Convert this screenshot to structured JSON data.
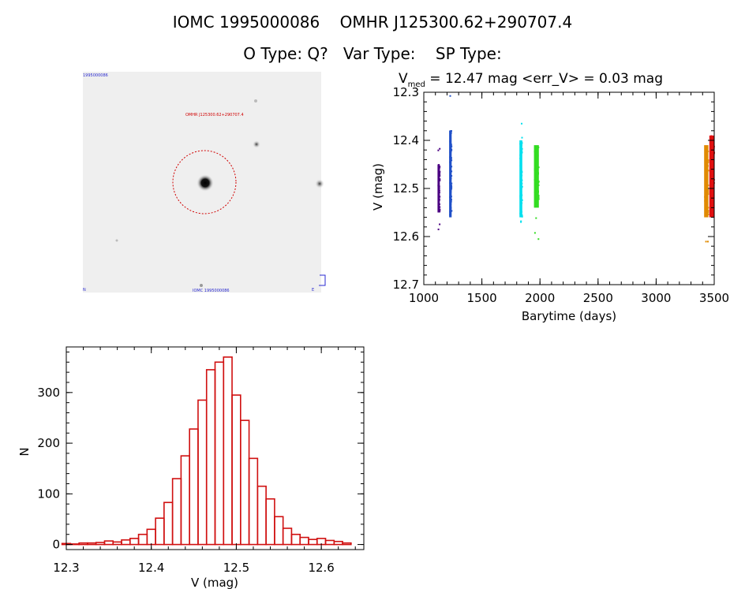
{
  "header": {
    "line1": "IOMC 1995000086    OMHR J125300.62+290707.4",
    "line2": "O Type: Q?   Var Type:    SP Type:"
  },
  "colors": {
    "lc_series": [
      "#4b0082",
      "#1f4fc8",
      "#00e0ee",
      "#33dd22",
      "#e08a00",
      "#e01010"
    ],
    "histogram": "#d01010",
    "marker_circle": "#d00000"
  },
  "finder_image": {
    "corner_tl": "1995000086",
    "corner_bl": "N",
    "corner_br": "E",
    "caption_bottom": "IOMC 1995000086",
    "target_label": "OMHR J125300.62+290707.4"
  },
  "chart_data": [
    {
      "type": "scatter",
      "title_prefix": "V",
      "title_subscript": "med",
      "title_suffix": " = 12.47 mag <err_V> = 0.03 mag",
      "xlabel": "Barytime (days)",
      "ylabel": "V (mag)",
      "xlim": [
        1000,
        3500
      ],
      "ylim": [
        12.3,
        12.7
      ],
      "y_inverted": true,
      "xticks": [
        1000,
        1500,
        2000,
        2500,
        3000,
        3500
      ],
      "yticks": [
        12.3,
        12.4,
        12.5,
        12.6,
        12.7
      ],
      "series": [
        {
          "name": "season1",
          "x_range": [
            1125,
            1138
          ],
          "y_min": 12.41,
          "y_max": 12.62,
          "y_core": [
            12.45,
            12.55
          ],
          "color_index": 0
        },
        {
          "name": "season2",
          "x_range": [
            1225,
            1240
          ],
          "y_min": 12.3,
          "y_max": 12.6,
          "y_core": [
            12.38,
            12.56
          ],
          "color_index": 1
        },
        {
          "name": "season3",
          "x_range": [
            1830,
            1848
          ],
          "y_min": 12.34,
          "y_max": 12.61,
          "y_core": [
            12.4,
            12.56
          ],
          "color_index": 2
        },
        {
          "name": "season4",
          "x_range": [
            1955,
            1990
          ],
          "y_min": 12.36,
          "y_max": 12.64,
          "y_core": [
            12.41,
            12.54
          ],
          "color_index": 3
        },
        {
          "name": "season5",
          "x_range": [
            3420,
            3450
          ],
          "y_min": 12.39,
          "y_max": 12.62,
          "y_core": [
            12.41,
            12.56
          ],
          "color_index": 4
        },
        {
          "name": "season6",
          "x_range": [
            3465,
            3500
          ],
          "y_min": 12.36,
          "y_max": 12.58,
          "y_core": [
            12.39,
            12.56
          ],
          "color_index": 5
        }
      ]
    },
    {
      "type": "bar",
      "style": "histogram",
      "xlabel": "V (mag)",
      "ylabel": "N",
      "xlim": [
        12.3,
        12.65
      ],
      "ylim": [
        -10,
        390
      ],
      "xticks": [
        12.3,
        12.4,
        12.5,
        12.6
      ],
      "yticks": [
        0,
        100,
        200,
        300
      ],
      "bin_width": 0.01,
      "bin_starts": [
        12.295,
        12.305,
        12.315,
        12.325,
        12.335,
        12.345,
        12.355,
        12.365,
        12.375,
        12.385,
        12.395,
        12.405,
        12.415,
        12.425,
        12.435,
        12.445,
        12.455,
        12.465,
        12.475,
        12.485,
        12.495,
        12.505,
        12.515,
        12.525,
        12.535,
        12.545,
        12.555,
        12.565,
        12.575,
        12.585,
        12.595,
        12.605,
        12.615,
        12.625
      ],
      "counts": [
        2,
        1,
        3,
        3,
        4,
        7,
        5,
        9,
        12,
        20,
        30,
        52,
        83,
        130,
        175,
        228,
        285,
        345,
        360,
        370,
        295,
        245,
        170,
        115,
        90,
        55,
        32,
        20,
        14,
        10,
        12,
        8,
        6,
        3
      ]
    }
  ]
}
